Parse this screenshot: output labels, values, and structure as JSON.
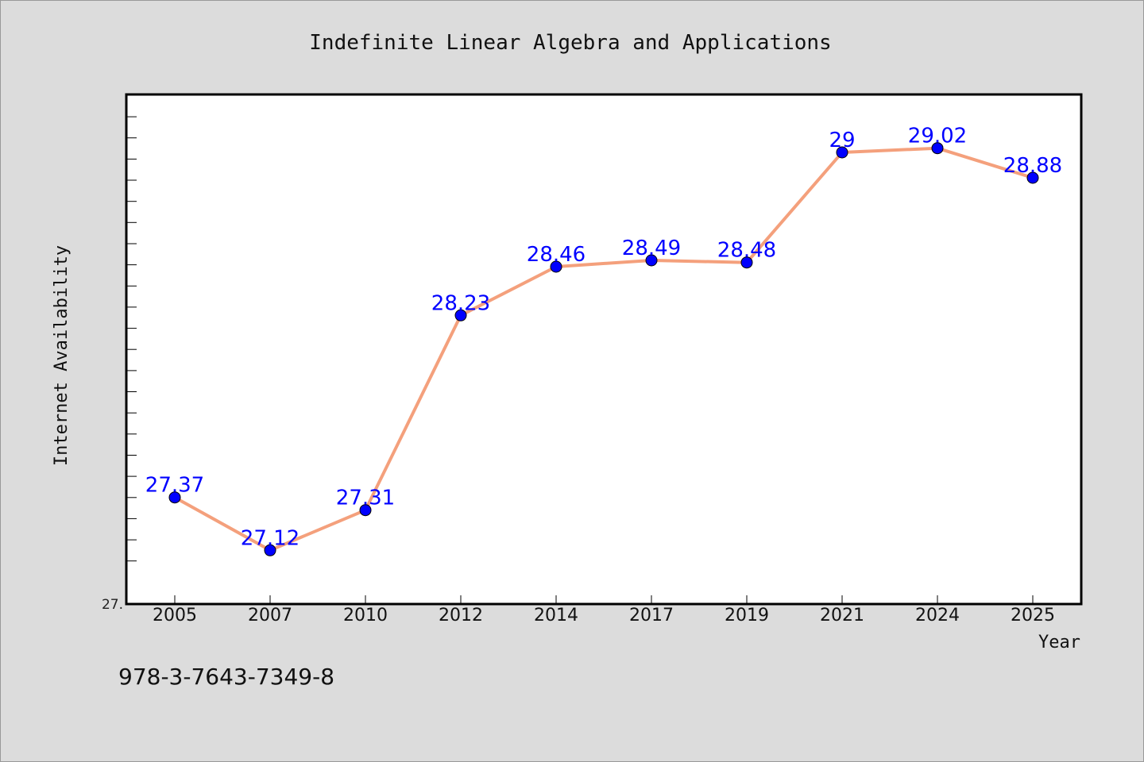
{
  "chart_data": {
    "type": "line",
    "title": "Indefinite Linear Algebra and Applications",
    "xlabel": "Year",
    "ylabel": "Internet Availability",
    "categories": [
      "2005",
      "2007",
      "2010",
      "2012",
      "2014",
      "2017",
      "2019",
      "2021",
      "2024",
      "2025"
    ],
    "series": [
      {
        "values": [
          27.37,
          27.12,
          27.31,
          28.23,
          28.46,
          28.49,
          28.48,
          29,
          29.02,
          28.88
        ]
      }
    ],
    "data_labels": [
      "27.37",
      "27.12",
      "27.31",
      "28.23",
      "28.46",
      "28.49",
      "28.48",
      "29",
      "29.02",
      "28.88"
    ],
    "y_tick_label": "27.",
    "ylim": [
      26.87,
      29.27
    ],
    "grid": false,
    "line_color": "#f4a07c",
    "marker_color": "#0000ff",
    "label_color": "#0000ff"
  },
  "footer": {
    "code": "978-3-7643-7349-8"
  }
}
